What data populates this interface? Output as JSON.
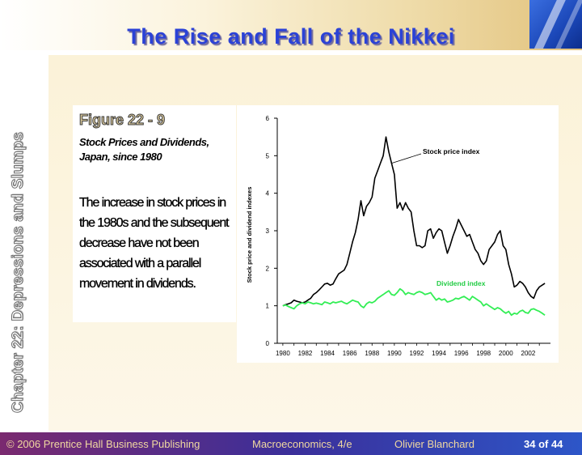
{
  "slide": {
    "title": "The Rise and Fall of the Nikkei",
    "side_label": "Chapter 22: Depressions and Slumps",
    "figure_label": "Figure 22 - 9",
    "figure_subtitle": "Stock Prices and Dividends, Japan, since 1980",
    "figure_description": "The increase in stock prices in the 1980s and the subsequent decrease have not been associated with a parallel movement in dividends."
  },
  "footer": {
    "copyright": "© 2006 Prentice Hall Business Publishing",
    "book": "Macroeconomics, 4/e",
    "author": "Olivier Blanchard",
    "page": "34 of 44"
  },
  "colors": {
    "title": "#2b42d6",
    "stock_line": "#000000",
    "dividend_line": "#33ee55",
    "dividend_label": "#22cc44"
  },
  "chart_data": {
    "type": "line",
    "title": "",
    "xlabel": "",
    "ylabel": "Stock price and dividend indexes",
    "xlim": [
      1979.5,
      2004
    ],
    "ylim": [
      0,
      6
    ],
    "x_ticks": [
      1980,
      1982,
      1984,
      1986,
      1988,
      1990,
      1992,
      1994,
      1996,
      1998,
      2000,
      2002
    ],
    "y_ticks": [
      0,
      1,
      2,
      3,
      4,
      5,
      6
    ],
    "grid": false,
    "legend": "inline annotations",
    "series": [
      {
        "name": "Stock price index",
        "x": [
          1980.0,
          1980.25,
          1980.5,
          1980.75,
          1981.0,
          1981.25,
          1981.5,
          1981.75,
          1982.0,
          1982.25,
          1982.5,
          1982.75,
          1983.0,
          1983.25,
          1983.5,
          1983.75,
          1984.0,
          1984.25,
          1984.5,
          1984.75,
          1985.0,
          1985.25,
          1985.5,
          1985.75,
          1986.0,
          1986.25,
          1986.5,
          1986.75,
          1987.0,
          1987.25,
          1987.5,
          1987.75,
          1988.0,
          1988.25,
          1988.5,
          1988.75,
          1989.0,
          1989.25,
          1989.5,
          1989.75,
          1990.0,
          1990.25,
          1990.5,
          1990.75,
          1991.0,
          1991.25,
          1991.5,
          1991.75,
          1992.0,
          1992.25,
          1992.5,
          1992.75,
          1993.0,
          1993.25,
          1993.5,
          1993.75,
          1994.0,
          1994.25,
          1994.5,
          1994.75,
          1995.0,
          1995.25,
          1995.5,
          1995.75,
          1996.0,
          1996.25,
          1996.5,
          1996.75,
          1997.0,
          1997.25,
          1997.5,
          1997.75,
          1998.0,
          1998.25,
          1998.5,
          1998.75,
          1999.0,
          1999.25,
          1999.5,
          1999.75,
          2000.0,
          2000.25,
          2000.5,
          2000.75,
          2001.0,
          2001.25,
          2001.5,
          2001.75,
          2002.0,
          2002.25,
          2002.5,
          2002.75,
          2003.0,
          2003.25,
          2003.5
        ],
        "values": [
          1.0,
          1.03,
          1.05,
          1.08,
          1.15,
          1.12,
          1.1,
          1.08,
          1.1,
          1.15,
          1.2,
          1.3,
          1.35,
          1.42,
          1.5,
          1.58,
          1.6,
          1.55,
          1.58,
          1.72,
          1.85,
          1.9,
          1.95,
          2.1,
          2.4,
          2.7,
          2.95,
          3.3,
          3.8,
          3.4,
          3.65,
          3.75,
          3.9,
          4.4,
          4.6,
          4.8,
          5.0,
          5.5,
          5.1,
          4.8,
          4.5,
          3.6,
          3.75,
          3.55,
          3.75,
          3.6,
          3.5,
          3.0,
          2.6,
          2.6,
          2.55,
          2.6,
          3.0,
          3.05,
          2.8,
          2.95,
          3.05,
          3.0,
          2.7,
          2.4,
          2.6,
          2.85,
          3.05,
          3.3,
          3.15,
          3.0,
          2.85,
          2.9,
          2.7,
          2.5,
          2.4,
          2.2,
          2.1,
          2.2,
          2.5,
          2.6,
          2.7,
          2.9,
          3.0,
          2.6,
          2.5,
          2.1,
          1.85,
          1.5,
          1.55,
          1.65,
          1.6,
          1.5,
          1.35,
          1.25,
          1.2,
          1.4,
          1.5,
          1.55,
          1.6
        ]
      },
      {
        "name": "Dividend index",
        "x": [
          1980.0,
          1980.25,
          1980.5,
          1980.75,
          1981.0,
          1981.25,
          1981.5,
          1981.75,
          1982.0,
          1982.25,
          1982.5,
          1982.75,
          1983.0,
          1983.25,
          1983.5,
          1983.75,
          1984.0,
          1984.25,
          1984.5,
          1984.75,
          1985.0,
          1985.25,
          1985.5,
          1985.75,
          1986.0,
          1986.25,
          1986.5,
          1986.75,
          1987.0,
          1987.25,
          1987.5,
          1987.75,
          1988.0,
          1988.25,
          1988.5,
          1988.75,
          1989.0,
          1989.25,
          1989.5,
          1989.75,
          1990.0,
          1990.25,
          1990.5,
          1990.75,
          1991.0,
          1991.25,
          1991.5,
          1991.75,
          1992.0,
          1992.25,
          1992.5,
          1992.75,
          1993.0,
          1993.25,
          1993.5,
          1993.75,
          1994.0,
          1994.25,
          1994.5,
          1994.75,
          1995.0,
          1995.25,
          1995.5,
          1995.75,
          1996.0,
          1996.25,
          1996.5,
          1996.75,
          1997.0,
          1997.25,
          1997.5,
          1997.75,
          1998.0,
          1998.25,
          1998.5,
          1998.75,
          1999.0,
          1999.25,
          1999.5,
          1999.75,
          2000.0,
          2000.25,
          2000.5,
          2000.75,
          2001.0,
          2001.25,
          2001.5,
          2001.75,
          2002.0,
          2002.25,
          2002.5,
          2002.75,
          2003.0,
          2003.25,
          2003.5
        ],
        "values": [
          1.0,
          1.02,
          0.98,
          0.95,
          0.92,
          1.0,
          1.05,
          1.08,
          1.05,
          1.1,
          1.08,
          1.05,
          1.07,
          1.05,
          1.03,
          1.1,
          1.08,
          1.05,
          1.1,
          1.08,
          1.1,
          1.12,
          1.08,
          1.05,
          1.1,
          1.15,
          1.12,
          1.1,
          1.0,
          0.95,
          1.05,
          1.1,
          1.08,
          1.12,
          1.2,
          1.25,
          1.3,
          1.35,
          1.4,
          1.3,
          1.28,
          1.35,
          1.45,
          1.4,
          1.3,
          1.35,
          1.32,
          1.3,
          1.35,
          1.38,
          1.35,
          1.3,
          1.32,
          1.35,
          1.25,
          1.15,
          1.2,
          1.15,
          1.18,
          1.1,
          1.12,
          1.15,
          1.2,
          1.18,
          1.22,
          1.25,
          1.2,
          1.15,
          1.25,
          1.2,
          1.15,
          1.1,
          1.0,
          1.05,
          1.0,
          0.95,
          0.9,
          0.95,
          0.92,
          0.85,
          0.8,
          0.85,
          0.75,
          0.8,
          0.78,
          0.85,
          0.88,
          0.82,
          0.8,
          0.9,
          0.92,
          0.88,
          0.85,
          0.8,
          0.75
        ]
      }
    ]
  }
}
